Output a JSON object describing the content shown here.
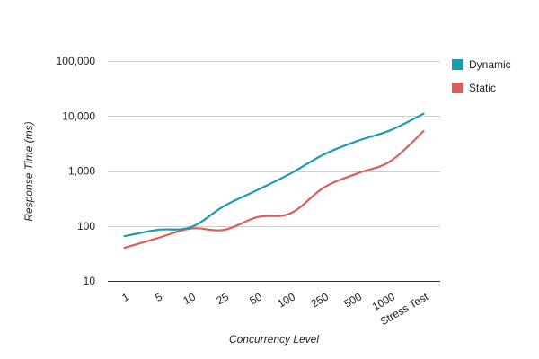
{
  "chart_data": {
    "type": "line",
    "title": "",
    "xlabel": "Concurrency Level",
    "ylabel": "Response Time (ms)",
    "y_scale": "log",
    "ylim": [
      10,
      100000
    ],
    "y_ticks": [
      "10",
      "100",
      "1,000",
      "10,000",
      "100,000"
    ],
    "y_tick_values": [
      10,
      100,
      1000,
      10000,
      100000
    ],
    "grid": true,
    "legend_position": "right",
    "categories": [
      "1",
      "5",
      "10",
      "25",
      "50",
      "100",
      "250",
      "500",
      "1000",
      "Stress Test"
    ],
    "series": [
      {
        "name": "Dynamic",
        "color": "#1a9bb0",
        "values": [
          65,
          85,
          95,
          230,
          450,
          900,
          2000,
          3500,
          5500,
          11000
        ]
      },
      {
        "name": "Static",
        "color": "#d9605a",
        "values": [
          40,
          60,
          90,
          85,
          145,
          170,
          500,
          900,
          1500,
          5300
        ]
      }
    ]
  }
}
